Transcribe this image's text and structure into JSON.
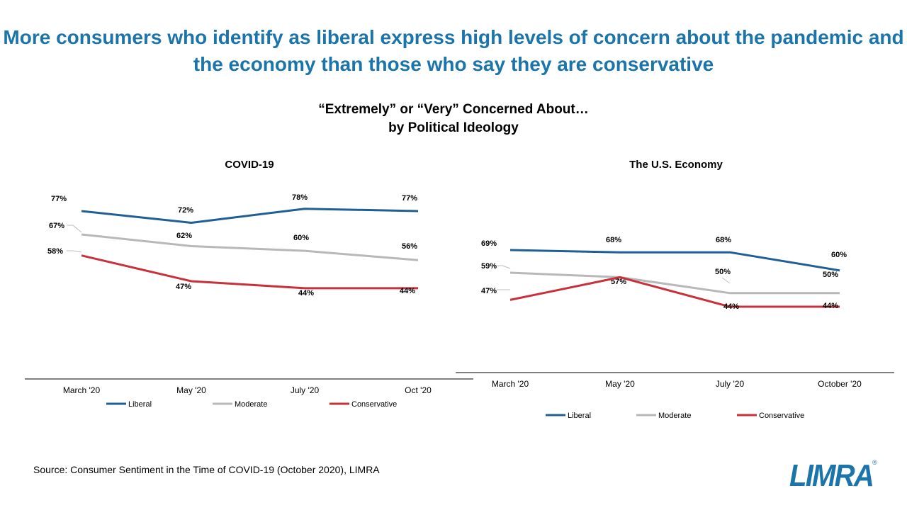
{
  "headline": "More consumers who identify as liberal express high levels of concern about the pandemic and the economy than those who say they are conservative",
  "subtitle_line1": "“Extremely” or “Very” Concerned About…",
  "subtitle_line2": "by Political Ideology",
  "source": "Source: Consumer Sentiment in the Time of COVID-19 (October 2020), LIMRA",
  "logo_text": "LIMRA",
  "colors": {
    "headline": "#1b75ab",
    "liberal": "#1f5f96",
    "moderate": "#b8b8b8",
    "conservative": "#c8313a"
  },
  "chart_data": [
    {
      "type": "line",
      "title": "COVID-19",
      "categories": [
        "March '20",
        "May '20",
        "July '20",
        "Oct '20"
      ],
      "series": [
        {
          "name": "Liberal",
          "values": [
            77,
            72,
            78,
            77
          ],
          "labels": [
            "77%",
            "72%",
            "78%",
            "77%"
          ]
        },
        {
          "name": "Moderate",
          "values": [
            67,
            62,
            60,
            56
          ],
          "labels": [
            "67%",
            "62%",
            "60%",
            "56%"
          ]
        },
        {
          "name": "Conservative",
          "values": [
            58,
            47,
            44,
            44
          ],
          "labels": [
            "58%",
            "47%",
            "44%",
            "44%"
          ]
        }
      ],
      "legend": "bottom",
      "grid": false
    },
    {
      "type": "line",
      "title": "The U.S. Economy",
      "categories": [
        "March '20",
        "May '20",
        "July '20",
        "October '20"
      ],
      "series": [
        {
          "name": "Liberal",
          "values": [
            69,
            68,
            68,
            60
          ],
          "labels": [
            "69%",
            "68%",
            "68%",
            "60%"
          ]
        },
        {
          "name": "Moderate",
          "values": [
            59,
            57,
            50,
            50
          ],
          "labels": [
            "59%",
            "57%",
            "50%",
            "50%"
          ]
        },
        {
          "name": "Conservative",
          "values": [
            47,
            57,
            44,
            44
          ],
          "labels": [
            "47%",
            "57%",
            "44%",
            "44%"
          ]
        }
      ],
      "legend": "bottom",
      "grid": false
    }
  ]
}
